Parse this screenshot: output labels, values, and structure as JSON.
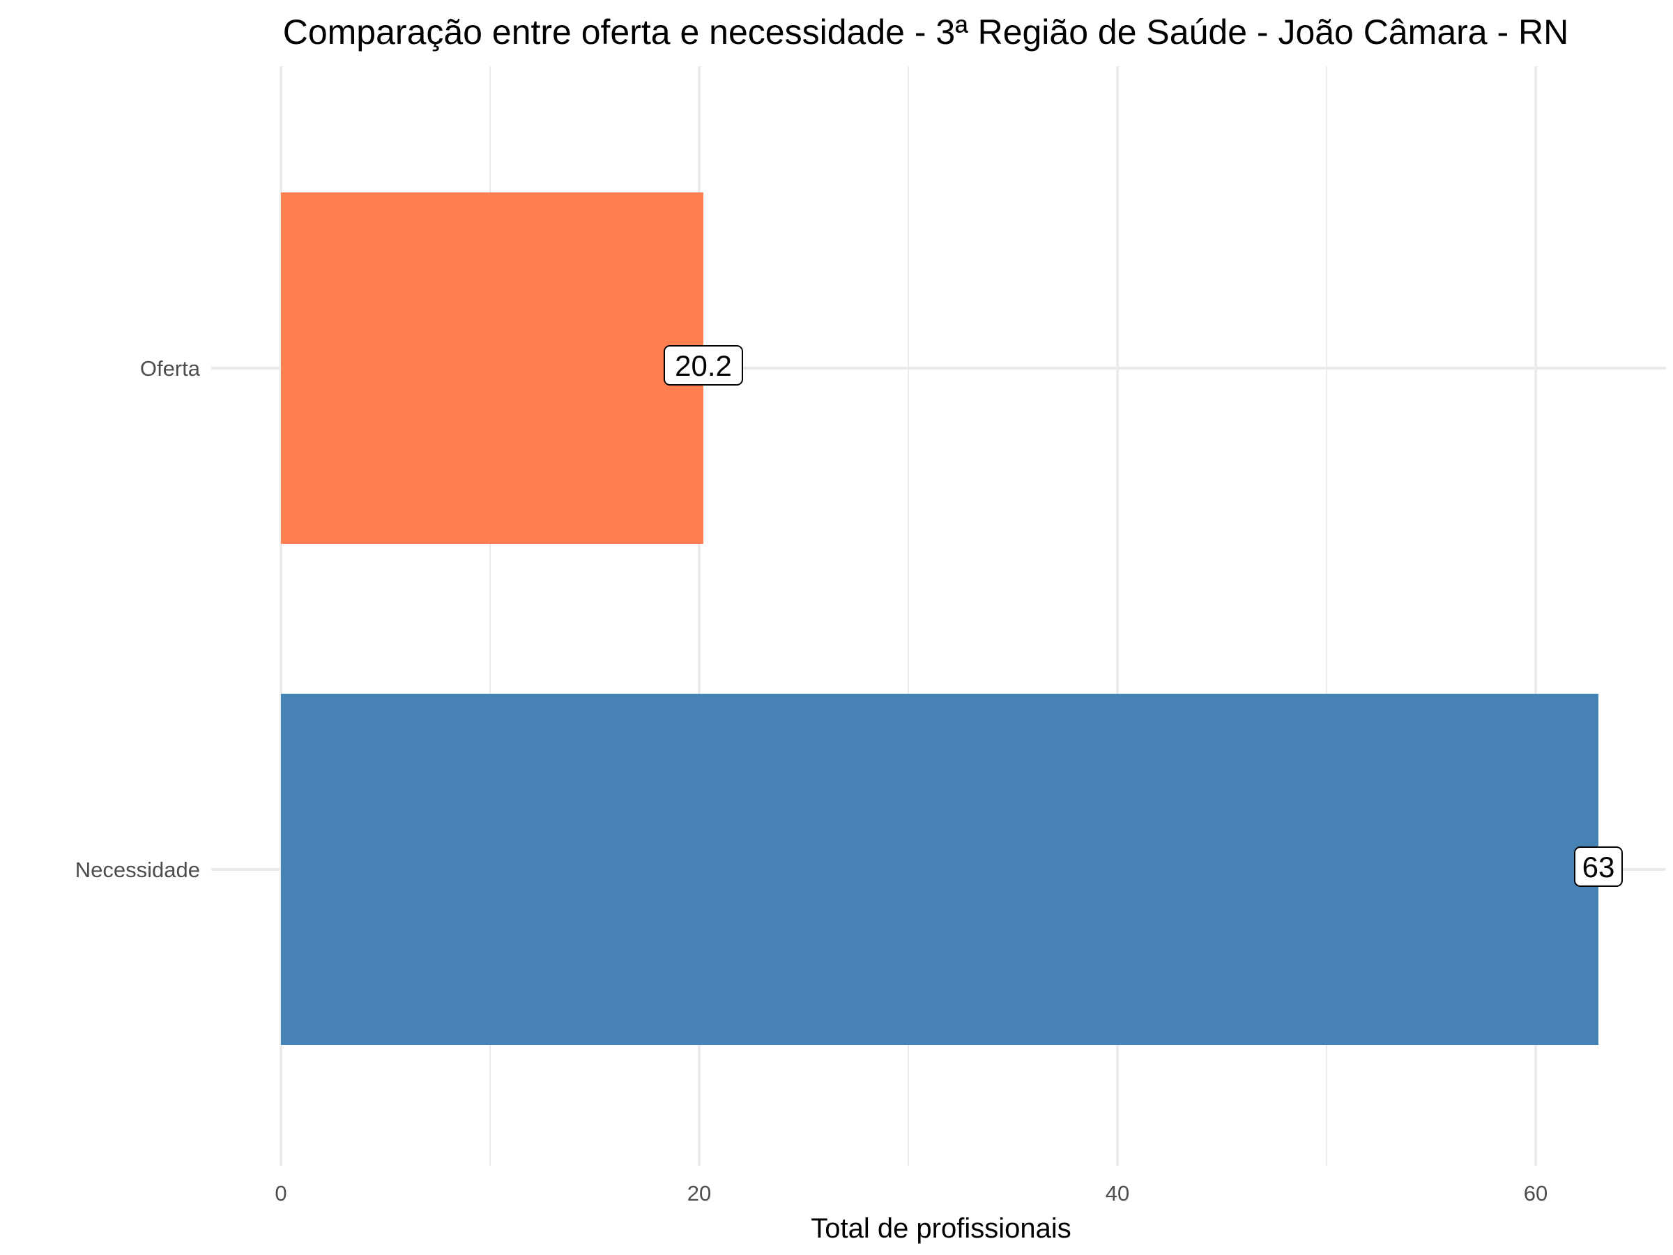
{
  "chart_data": {
    "type": "bar",
    "orientation": "horizontal",
    "title": "Comparação entre oferta e necessidade - 3ª Região de Saúde - João Câmara - RN",
    "xlabel": "Total de profissionais",
    "ylabel": "",
    "categories": [
      "Oferta",
      "Necessidade"
    ],
    "values": [
      20.2,
      63
    ],
    "value_labels": [
      "20.2",
      "63"
    ],
    "colors": [
      "#FF7F50",
      "#4682B4"
    ],
    "xlim": [
      0,
      65.5
    ],
    "x_ticks": [
      0,
      20,
      40,
      60
    ],
    "x_tick_labels": [
      "0",
      "20",
      "40",
      "60"
    ],
    "x_minor_ticks": [
      10,
      30,
      50
    ],
    "grid": true,
    "legend": "none"
  }
}
